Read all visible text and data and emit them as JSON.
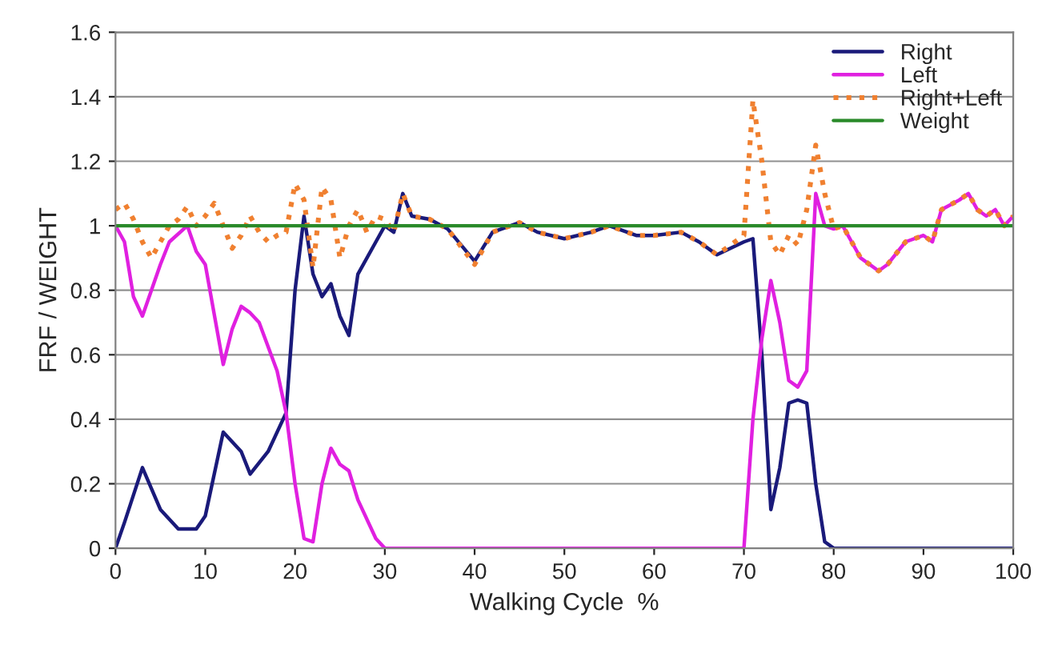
{
  "chart_data": {
    "type": "line",
    "xlabel": "Walking Cycle  %",
    "ylabel": "FRF / WEIGHT",
    "xlim": [
      0,
      100
    ],
    "ylim": [
      0,
      1.6
    ],
    "xticks": [
      0,
      10,
      20,
      30,
      40,
      50,
      60,
      70,
      80,
      90,
      100
    ],
    "yticks": [
      0,
      0.2,
      0.4,
      0.6,
      0.8,
      1,
      1.2,
      1.4,
      1.6
    ],
    "grid": "y",
    "legend": "top right",
    "marker": "none",
    "series": [
      {
        "name": "Right",
        "color": "#1a1a7a",
        "line_style": "solid",
        "x": [
          0,
          1,
          3,
          5,
          7,
          9,
          10,
          12,
          14,
          15,
          17,
          19,
          20,
          21,
          22,
          23,
          24,
          25,
          26,
          27,
          29,
          30,
          31,
          32,
          33,
          35,
          37,
          40,
          42,
          45,
          47,
          50,
          53,
          55,
          58,
          60,
          63,
          65,
          67,
          70,
          71,
          72,
          73,
          74,
          75,
          76,
          77,
          78,
          79,
          80,
          85,
          100
        ],
        "values": [
          0,
          0.08,
          0.25,
          0.12,
          0.06,
          0.06,
          0.1,
          0.36,
          0.3,
          0.23,
          0.3,
          0.42,
          0.8,
          1.03,
          0.85,
          0.78,
          0.82,
          0.72,
          0.66,
          0.85,
          0.95,
          1.0,
          0.98,
          1.1,
          1.03,
          1.02,
          0.99,
          0.89,
          0.98,
          1.01,
          0.98,
          0.96,
          0.98,
          1.0,
          0.97,
          0.97,
          0.98,
          0.95,
          0.91,
          0.95,
          0.96,
          0.6,
          0.12,
          0.25,
          0.45,
          0.46,
          0.45,
          0.2,
          0.02,
          0,
          0,
          0
        ]
      },
      {
        "name": "Left",
        "color": "#e020e0",
        "line_style": "solid",
        "x": [
          0,
          1,
          2,
          3,
          5,
          6,
          8,
          9,
          10,
          12,
          13,
          14,
          15,
          16,
          18,
          19,
          20,
          21,
          22,
          23,
          24,
          25,
          26,
          27,
          29,
          30,
          70,
          71,
          72,
          73,
          74,
          75,
          76,
          77,
          78,
          79,
          80,
          81,
          82,
          83,
          85,
          86,
          88,
          90,
          91,
          92,
          94,
          95,
          96,
          97,
          98,
          99,
          100
        ],
        "values": [
          1.0,
          0.95,
          0.78,
          0.72,
          0.88,
          0.95,
          1.0,
          0.92,
          0.88,
          0.57,
          0.68,
          0.75,
          0.73,
          0.7,
          0.55,
          0.42,
          0.2,
          0.03,
          0.02,
          0.2,
          0.31,
          0.26,
          0.24,
          0.15,
          0.03,
          0,
          0,
          0.4,
          0.65,
          0.83,
          0.7,
          0.52,
          0.5,
          0.55,
          1.1,
          1.0,
          0.99,
          1.0,
          0.95,
          0.9,
          0.86,
          0.88,
          0.95,
          0.97,
          0.95,
          1.05,
          1.08,
          1.1,
          1.05,
          1.03,
          1.05,
          1.0,
          1.03
        ]
      },
      {
        "name": "Right+Left",
        "color": "#f08030",
        "line_style": "dotted",
        "x": [
          0,
          1,
          2,
          3,
          4,
          5,
          6,
          7,
          8,
          9,
          10,
          11,
          12,
          13,
          14,
          15,
          16,
          17,
          18,
          19,
          20,
          21,
          22,
          23,
          24,
          25,
          26,
          27,
          28,
          29,
          30,
          31,
          32,
          33,
          35,
          37,
          40,
          42,
          45,
          47,
          50,
          53,
          55,
          58,
          60,
          63,
          65,
          67,
          70,
          71,
          72,
          73,
          74,
          75,
          76,
          77,
          78,
          79,
          80,
          81,
          82,
          83,
          85,
          86,
          88,
          90,
          91,
          92,
          94,
          95,
          96,
          97,
          98,
          99,
          100
        ],
        "values": [
          1.05,
          1.07,
          1.02,
          0.95,
          0.9,
          0.95,
          1.0,
          1.02,
          1.06,
          1.0,
          1.03,
          1.07,
          1.0,
          0.93,
          0.97,
          1.03,
          0.98,
          0.95,
          0.97,
          0.98,
          1.13,
          1.08,
          0.87,
          1.12,
          1.08,
          0.9,
          1.0,
          1.05,
          0.98,
          1.03,
          1.02,
          0.98,
          1.1,
          1.03,
          1.02,
          0.99,
          0.88,
          0.98,
          1.01,
          0.98,
          0.96,
          0.98,
          1.0,
          0.97,
          0.97,
          0.98,
          0.95,
          0.91,
          0.97,
          1.39,
          1.2,
          0.95,
          0.91,
          0.97,
          0.94,
          1.05,
          1.25,
          1.1,
          0.99,
          1.0,
          0.95,
          0.9,
          0.86,
          0.88,
          0.95,
          0.97,
          0.95,
          1.05,
          1.08,
          1.1,
          1.05,
          1.03,
          1.05,
          1.0,
          1.03
        ]
      },
      {
        "name": "Weight",
        "color": "#2a8a2a",
        "line_style": "solid",
        "x": [
          0,
          100
        ],
        "values": [
          1,
          1
        ]
      }
    ]
  }
}
